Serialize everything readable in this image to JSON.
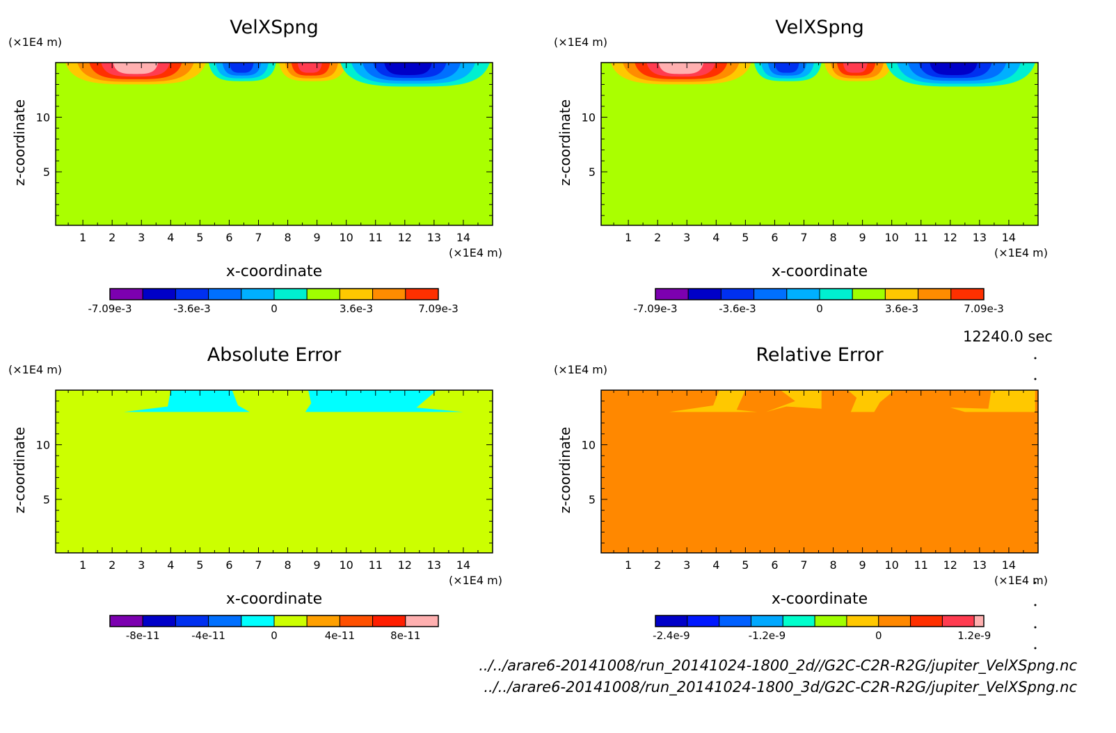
{
  "figure": {
    "time_label": "12240.0 sec",
    "file_paths": [
      "../../arare6-20141008/run_20141024-1800_2d//G2C-C2R-R2G/jupiter_VelXSpng.nc",
      "../../arare6-20141008/run_20141024-1800_3d/G2C-C2R-R2G/jupiter_VelXSpng.nc"
    ]
  },
  "chart_data": [
    {
      "type": "heatmap",
      "title": "VelXSpng",
      "xlabel": "x-coordinate",
      "ylabel": "z-coordinate",
      "x_unit": "(×1E4 m)",
      "y_unit": "(×1E4 m)",
      "xlim": [
        0.07,
        15
      ],
      "ylim": [
        0.1,
        15
      ],
      "x_ticks": [
        1,
        2,
        3,
        4,
        5,
        6,
        7,
        8,
        9,
        10,
        11,
        12,
        13,
        14
      ],
      "y_ticks": [
        5,
        10
      ],
      "background_color": "#aaff00",
      "colorbar": {
        "colors": [
          "#7c00b0",
          "#0000c8",
          "#0030f0",
          "#0070ff",
          "#00b0ff",
          "#00f0d0",
          "#a0ff00",
          "#ffc800",
          "#ff8c00",
          "#ff3000",
          "#ff3c50",
          "#ffb0b0"
        ],
        "tick_labels": [
          "-7.09e-3",
          "-3.6e-3",
          "0",
          "3.6e-3",
          "7.09e-3"
        ],
        "tick_positions": [
          0,
          2.5,
          5,
          7.5,
          10
        ],
        "n_boxes": 10
      },
      "features": [
        {
          "x0": 0.4,
          "x1": 5.2,
          "peak_x": 2.8,
          "sign": 1,
          "level": 5,
          "base_z": 13.0
        },
        {
          "x0": 5.3,
          "x1": 7.6,
          "peak_x": 6.4,
          "sign": -1,
          "level": 4,
          "base_z": 13.3
        },
        {
          "x0": 7.7,
          "x1": 10.0,
          "peak_x": 8.7,
          "sign": 1,
          "level": 4,
          "base_z": 13.3
        },
        {
          "x0": 9.8,
          "x1": 14.9,
          "peak_x": 12.0,
          "sign": -1,
          "level": 5,
          "base_z": 12.8
        }
      ]
    },
    {
      "type": "heatmap",
      "title": "VelXSpng",
      "xlabel": "x-coordinate",
      "ylabel": "z-coordinate",
      "x_unit": "(×1E4 m)",
      "y_unit": "(×1E4 m)",
      "xlim": [
        0.07,
        15
      ],
      "ylim": [
        0.1,
        15
      ],
      "x_ticks": [
        1,
        2,
        3,
        4,
        5,
        6,
        7,
        8,
        9,
        10,
        11,
        12,
        13,
        14
      ],
      "y_ticks": [
        5,
        10
      ],
      "background_color": "#aaff00",
      "colorbar": {
        "colors": [
          "#7c00b0",
          "#0000c8",
          "#0030f0",
          "#0070ff",
          "#00b0ff",
          "#00f0d0",
          "#a0ff00",
          "#ffc800",
          "#ff8c00",
          "#ff3000",
          "#ff3c50",
          "#ffb0b0"
        ],
        "tick_labels": [
          "-7.09e-3",
          "-3.6e-3",
          "0",
          "3.6e-3",
          "7.09e-3"
        ],
        "tick_positions": [
          0,
          2.5,
          5,
          7.5,
          10
        ],
        "n_boxes": 10
      },
      "features": [
        {
          "x0": 0.4,
          "x1": 5.2,
          "peak_x": 2.8,
          "sign": 1,
          "level": 5,
          "base_z": 13.0
        },
        {
          "x0": 5.3,
          "x1": 7.6,
          "peak_x": 6.4,
          "sign": -1,
          "level": 4,
          "base_z": 13.3
        },
        {
          "x0": 7.7,
          "x1": 10.0,
          "peak_x": 8.7,
          "sign": 1,
          "level": 4,
          "base_z": 13.3
        },
        {
          "x0": 9.8,
          "x1": 14.9,
          "peak_x": 12.0,
          "sign": -1,
          "level": 5,
          "base_z": 12.8
        }
      ]
    },
    {
      "type": "heatmap",
      "title": "Absolute Error",
      "xlabel": "x-coordinate",
      "ylabel": "z-coordinate",
      "x_unit": "(×1E4 m)",
      "y_unit": "(×1E4 m)",
      "xlim": [
        0.07,
        15
      ],
      "ylim": [
        0.1,
        15
      ],
      "x_ticks": [
        1,
        2,
        3,
        4,
        5,
        6,
        7,
        8,
        9,
        10,
        11,
        12,
        13,
        14
      ],
      "y_ticks": [
        5,
        10
      ],
      "background_color": "#ccff00",
      "colorbar": {
        "colors": [
          "#7c00b0",
          "#0000c8",
          "#0030f0",
          "#0070ff",
          "#00ffff",
          "#ccff00",
          "#ffa000",
          "#ff5000",
          "#ff1e00",
          "#ffb0b0"
        ],
        "tick_labels": [
          "-8e-11",
          "-4e-11",
          "0",
          "4e-11",
          "8e-11"
        ],
        "tick_positions": [
          1,
          3,
          5,
          7,
          9
        ],
        "n_boxes": 10
      },
      "regions": [
        {
          "color": "#00ffff",
          "points": [
            [
              2.4,
              13.0
            ],
            [
              3.9,
              13.5
            ],
            [
              4.0,
              15.0
            ],
            [
              6.1,
              15.0
            ],
            [
              6.3,
              13.6
            ],
            [
              6.7,
              13.0
            ]
          ]
        },
        {
          "color": "#00ffff",
          "points": [
            [
              8.6,
              13.0
            ],
            [
              8.8,
              13.8
            ],
            [
              8.7,
              15.0
            ],
            [
              13.1,
              15.0
            ],
            [
              12.4,
              13.4
            ],
            [
              14.0,
              13.0
            ]
          ]
        }
      ]
    },
    {
      "type": "heatmap",
      "title": "Relative Error",
      "xlabel": "x-coordinate",
      "ylabel": "z-coordinate",
      "x_unit": "(×1E4 m)",
      "y_unit": "(×1E4 m)",
      "xlim": [
        0.07,
        15
      ],
      "ylim": [
        0.1,
        15
      ],
      "x_ticks": [
        1,
        2,
        3,
        4,
        5,
        6,
        7,
        8,
        9,
        10,
        11,
        12,
        13,
        14
      ],
      "y_ticks": [
        5,
        10
      ],
      "background_color": "#ff8800",
      "colorbar": {
        "colors": [
          "#0000c8",
          "#0018ff",
          "#0060ff",
          "#00a8ff",
          "#00ffcc",
          "#a0ff00",
          "#ffc800",
          "#ff8800",
          "#ff3000",
          "#ff3c50",
          "#ffb0b0"
        ],
        "tick_labels": [
          "-2.4e-9",
          "-1.2e-9",
          "0",
          "1.2e-9"
        ],
        "tick_positions": [
          0.5,
          3.5,
          7,
          10
        ],
        "n_boxes": 10.3
      },
      "regions": [
        {
          "color": "#ffc800",
          "points": [
            [
              2.4,
              13.0
            ],
            [
              3.9,
              13.6
            ],
            [
              4.1,
              15.0
            ],
            [
              5.0,
              15.0
            ],
            [
              4.7,
              13.2
            ],
            [
              5.4,
              13.0
            ]
          ]
        },
        {
          "color": "#ffc800",
          "points": [
            [
              5.7,
              13.0
            ],
            [
              6.4,
              13.5
            ],
            [
              7.6,
              13.3
            ],
            [
              7.6,
              15.0
            ],
            [
              6.2,
              15.0
            ],
            [
              6.7,
              14.0
            ]
          ]
        },
        {
          "color": "#ffc800",
          "points": [
            [
              8.6,
              13.0
            ],
            [
              8.8,
              14.3
            ],
            [
              8.5,
              15.0
            ],
            [
              10.1,
              15.0
            ],
            [
              9.6,
              13.9
            ],
            [
              9.4,
              13.0
            ]
          ]
        },
        {
          "color": "#ffc800",
          "points": [
            [
              12.0,
              13.4
            ],
            [
              13.3,
              13.3
            ],
            [
              13.4,
              15.0
            ],
            [
              14.9,
              15.0
            ],
            [
              14.9,
              13.0
            ],
            [
              12.5,
              13.0
            ]
          ]
        }
      ]
    }
  ]
}
